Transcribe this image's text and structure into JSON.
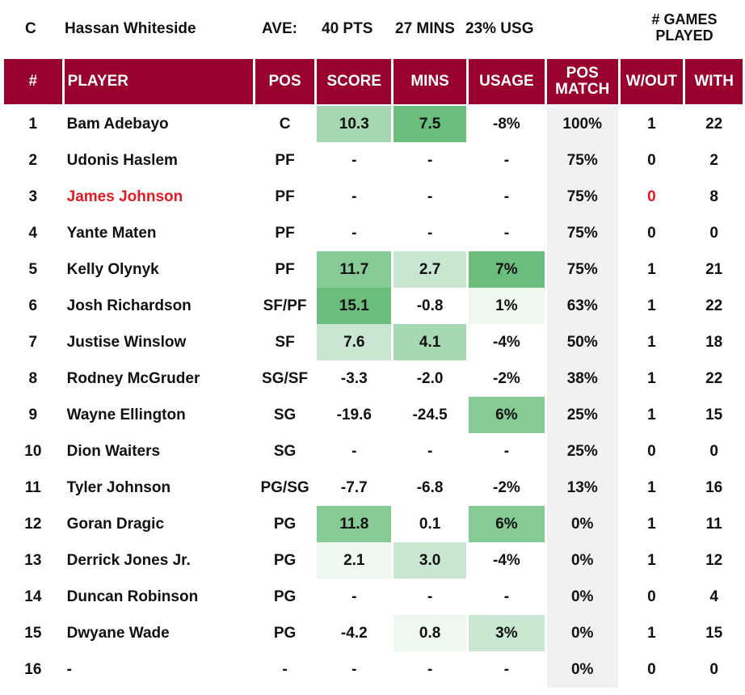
{
  "info": {
    "position": "C",
    "player": "Hassan Whiteside",
    "ave_label": "AVE:",
    "pts": "40 PTS",
    "mins": "27 MINS",
    "usg": "23% USG",
    "games_played_label": "# GAMES PLAYED"
  },
  "headers": {
    "num": "#",
    "player": "PLAYER",
    "pos": "POS",
    "score": "SCORE",
    "mins": "MINS",
    "usage": "USAGE",
    "pos_match": "POS MATCH",
    "without": "W/OUT",
    "with": "WITH"
  },
  "colors": {
    "header_bg": "#98002e",
    "highlight_text": "#e31b23",
    "pos_match_bg": "#f1f1f1",
    "green_scale": [
      "#eef7f0",
      "#c9e7d0",
      "#a6d8b2",
      "#86cb96",
      "#6bbd7c"
    ]
  },
  "rows": [
    {
      "num": "1",
      "player": "Bam Adebayo",
      "pos": "C",
      "score": "10.3",
      "mins": "7.5",
      "usage": "-8%",
      "pos_match": "100%",
      "without": "1",
      "with": "22",
      "score_shade": 3,
      "mins_shade": 5,
      "usage_shade": 0
    },
    {
      "num": "2",
      "player": "Udonis Haslem",
      "pos": "PF",
      "score": "-",
      "mins": "-",
      "usage": "-",
      "pos_match": "75%",
      "without": "0",
      "with": "2",
      "score_shade": 0,
      "mins_shade": 0,
      "usage_shade": 0
    },
    {
      "num": "3",
      "player": "James Johnson",
      "pos": "PF",
      "score": "-",
      "mins": "-",
      "usage": "-",
      "pos_match": "75%",
      "without": "0",
      "with": "8",
      "score_shade": 0,
      "mins_shade": 0,
      "usage_shade": 0,
      "highlight": true
    },
    {
      "num": "4",
      "player": "Yante Maten",
      "pos": "PF",
      "score": "-",
      "mins": "-",
      "usage": "-",
      "pos_match": "75%",
      "without": "0",
      "with": "0",
      "score_shade": 0,
      "mins_shade": 0,
      "usage_shade": 0
    },
    {
      "num": "5",
      "player": "Kelly Olynyk",
      "pos": "PF",
      "score": "11.7",
      "mins": "2.7",
      "usage": "7%",
      "pos_match": "75%",
      "without": "1",
      "with": "21",
      "score_shade": 4,
      "mins_shade": 2,
      "usage_shade": 5
    },
    {
      "num": "6",
      "player": "Josh Richardson",
      "pos": "SF/PF",
      "score": "15.1",
      "mins": "-0.8",
      "usage": "1%",
      "pos_match": "63%",
      "without": "1",
      "with": "22",
      "score_shade": 5,
      "mins_shade": 0,
      "usage_shade": 1
    },
    {
      "num": "7",
      "player": "Justise Winslow",
      "pos": "SF",
      "score": "7.6",
      "mins": "4.1",
      "usage": "-4%",
      "pos_match": "50%",
      "without": "1",
      "with": "18",
      "score_shade": 2,
      "mins_shade": 3,
      "usage_shade": 0
    },
    {
      "num": "8",
      "player": "Rodney McGruder",
      "pos": "SG/SF",
      "score": "-3.3",
      "mins": "-2.0",
      "usage": "-2%",
      "pos_match": "38%",
      "without": "1",
      "with": "22",
      "score_shade": 0,
      "mins_shade": 0,
      "usage_shade": 0
    },
    {
      "num": "9",
      "player": "Wayne Ellington",
      "pos": "SG",
      "score": "-19.6",
      "mins": "-24.5",
      "usage": "6%",
      "pos_match": "25%",
      "without": "1",
      "with": "15",
      "score_shade": 0,
      "mins_shade": 0,
      "usage_shade": 4
    },
    {
      "num": "10",
      "player": "Dion Waiters",
      "pos": "SG",
      "score": "-",
      "mins": "-",
      "usage": "-",
      "pos_match": "25%",
      "without": "0",
      "with": "0",
      "score_shade": 0,
      "mins_shade": 0,
      "usage_shade": 0
    },
    {
      "num": "11",
      "player": "Tyler Johnson",
      "pos": "PG/SG",
      "score": "-7.7",
      "mins": "-6.8",
      "usage": "-2%",
      "pos_match": "13%",
      "without": "1",
      "with": "16",
      "score_shade": 0,
      "mins_shade": 0,
      "usage_shade": 0
    },
    {
      "num": "12",
      "player": "Goran Dragic",
      "pos": "PG",
      "score": "11.8",
      "mins": "0.1",
      "usage": "6%",
      "pos_match": "0%",
      "without": "1",
      "with": "11",
      "score_shade": 4,
      "mins_shade": 0,
      "usage_shade": 4
    },
    {
      "num": "13",
      "player": "Derrick Jones Jr.",
      "pos": "PG",
      "score": "2.1",
      "mins": "3.0",
      "usage": "-4%",
      "pos_match": "0%",
      "without": "1",
      "with": "12",
      "score_shade": 1,
      "mins_shade": 2,
      "usage_shade": 0
    },
    {
      "num": "14",
      "player": "Duncan Robinson",
      "pos": "PG",
      "score": "-",
      "mins": "-",
      "usage": "-",
      "pos_match": "0%",
      "without": "0",
      "with": "4",
      "score_shade": 0,
      "mins_shade": 0,
      "usage_shade": 0
    },
    {
      "num": "15",
      "player": "Dwyane Wade",
      "pos": "PG",
      "score": "-4.2",
      "mins": "0.8",
      "usage": "3%",
      "pos_match": "0%",
      "without": "1",
      "with": "15",
      "score_shade": 0,
      "mins_shade": 1,
      "usage_shade": 2
    },
    {
      "num": "16",
      "player": "-",
      "pos": "-",
      "score": "-",
      "mins": "-",
      "usage": "-",
      "pos_match": "0%",
      "without": "0",
      "with": "0",
      "score_shade": 0,
      "mins_shade": 0,
      "usage_shade": 0
    }
  ]
}
